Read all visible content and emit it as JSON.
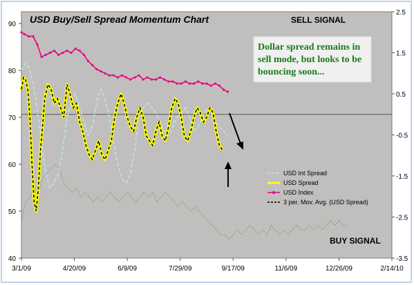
{
  "chart_data": {
    "type": "line",
    "title": "USD Buy/Sell Spread Momentum Chart",
    "sell_signal_label": "SELL SIGNAL",
    "buy_signal_label": "BUY SIGNAL",
    "annotation": [
      "Dollar spread remains in",
      "sell mode, but looks to be",
      "bouncing soon..."
    ],
    "x_axis": {
      "min": "2009-03-01",
      "max": "2010-02-14",
      "ticks": [
        "2009-03-01",
        "2009-04-20",
        "2009-06-09",
        "2009-07-29",
        "2009-09-17",
        "2009-11-06",
        "2009-12-26",
        "2010-02-14"
      ],
      "tick_labels": [
        "3/1/09",
        "4/20/09",
        "6/9/09",
        "7/29/09",
        "9/17/09",
        "11/6/09",
        "12/26/09",
        "2/14/10"
      ]
    },
    "y_left": {
      "min": 40,
      "max": 92.5,
      "ticks": [
        40,
        50,
        60,
        70,
        80,
        90
      ]
    },
    "y_right": {
      "min": -3.5,
      "max": 2.5,
      "ticks": [
        2.5,
        1.5,
        0.5,
        -0.5,
        -1.5,
        -2.5,
        -3.5
      ],
      "tick_labels": [
        "2.5",
        "1.5",
        "0.5",
        "-0.5",
        "-1.5",
        "-2.5",
        "-3.5"
      ]
    },
    "signal_line_right_value": 0,
    "grid": false,
    "legend_position": "bottom-right",
    "series": [
      {
        "name": "USD Int Spread",
        "axis": "left",
        "color": "#bfe6ea",
        "style": "dashed",
        "x": [
          "2009-03-01",
          "2009-03-05",
          "2009-03-09",
          "2009-03-13",
          "2009-03-17",
          "2009-03-21",
          "2009-03-24",
          "2009-03-28",
          "2009-04-01",
          "2009-04-05",
          "2009-04-09",
          "2009-04-13",
          "2009-04-17",
          "2009-04-21",
          "2009-04-25",
          "2009-04-29",
          "2009-05-03",
          "2009-05-07",
          "2009-05-11",
          "2009-05-15",
          "2009-05-19",
          "2009-05-23",
          "2009-05-27",
          "2009-05-31",
          "2009-06-04",
          "2009-06-08",
          "2009-06-12",
          "2009-06-16",
          "2009-06-20",
          "2009-06-24",
          "2009-06-28",
          "2009-07-02",
          "2009-07-06",
          "2009-07-10",
          "2009-07-14",
          "2009-07-18",
          "2009-07-22",
          "2009-07-26",
          "2009-07-30",
          "2009-08-03",
          "2009-08-07",
          "2009-08-11",
          "2009-08-15",
          "2009-08-19",
          "2009-08-23",
          "2009-08-27",
          "2009-08-31",
          "2009-09-04",
          "2009-09-08",
          "2009-09-12"
        ],
        "values": [
          80,
          81.5,
          80,
          76,
          70,
          63,
          58,
          55,
          56,
          58,
          63,
          70,
          73,
          75,
          72,
          69,
          66,
          68,
          73,
          76,
          74,
          70,
          65,
          60,
          57,
          56,
          58,
          63,
          70,
          72,
          73,
          72,
          71,
          69,
          67,
          66,
          68,
          70,
          71,
          72,
          70,
          67,
          68,
          70,
          72,
          71,
          69,
          68,
          67,
          66
        ]
      },
      {
        "name": "USD Spread",
        "axis": "left",
        "color": "#ffff00",
        "style": "solid",
        "x": [
          "2009-03-01",
          "2009-03-03",
          "2009-03-05",
          "2009-03-07",
          "2009-03-09",
          "2009-03-11",
          "2009-03-13",
          "2009-03-15",
          "2009-03-17",
          "2009-03-19",
          "2009-03-21",
          "2009-03-23",
          "2009-03-26",
          "2009-03-29",
          "2009-04-01",
          "2009-04-04",
          "2009-04-07",
          "2009-04-10",
          "2009-04-13",
          "2009-04-16",
          "2009-04-19",
          "2009-04-22",
          "2009-04-25",
          "2009-04-28",
          "2009-05-01",
          "2009-05-04",
          "2009-05-07",
          "2009-05-10",
          "2009-05-13",
          "2009-05-16",
          "2009-05-19",
          "2009-05-22",
          "2009-05-25",
          "2009-05-28",
          "2009-05-31",
          "2009-06-03",
          "2009-06-06",
          "2009-06-09",
          "2009-06-12",
          "2009-06-15",
          "2009-06-18",
          "2009-06-21",
          "2009-06-24",
          "2009-06-27",
          "2009-06-30",
          "2009-07-03",
          "2009-07-06",
          "2009-07-09",
          "2009-07-12",
          "2009-07-15",
          "2009-07-18",
          "2009-07-21",
          "2009-07-24",
          "2009-07-27",
          "2009-07-30",
          "2009-08-02",
          "2009-08-05",
          "2009-08-08",
          "2009-08-11",
          "2009-08-14",
          "2009-08-17",
          "2009-08-20",
          "2009-08-23",
          "2009-08-26",
          "2009-08-29",
          "2009-09-01",
          "2009-09-04",
          "2009-09-07"
        ],
        "values": [
          76,
          78.5,
          78,
          76,
          70,
          60,
          52,
          50,
          55,
          63,
          68,
          74,
          77,
          76,
          73,
          74,
          72,
          70,
          77,
          75,
          72,
          73,
          69,
          67,
          64,
          62,
          61,
          63,
          65,
          62,
          61,
          63,
          65,
          70,
          73,
          75,
          73,
          70,
          68,
          67,
          70,
          72,
          70,
          66,
          65,
          64,
          67,
          69,
          66,
          65,
          68,
          72,
          74,
          73,
          70,
          66,
          65,
          67,
          70,
          72,
          71,
          69,
          70,
          72,
          71,
          67,
          64,
          63
        ]
      },
      {
        "name": "USD Index",
        "axis": "right",
        "color": "#e6007e",
        "style": "solid-markers",
        "x": [
          "2009-03-01",
          "2009-03-04",
          "2009-03-08",
          "2009-03-12",
          "2009-03-16",
          "2009-03-20",
          "2009-03-24",
          "2009-03-28",
          "2009-04-01",
          "2009-04-05",
          "2009-04-09",
          "2009-04-13",
          "2009-04-17",
          "2009-04-21",
          "2009-04-25",
          "2009-04-29",
          "2009-05-03",
          "2009-05-07",
          "2009-05-11",
          "2009-05-15",
          "2009-05-19",
          "2009-05-23",
          "2009-05-27",
          "2009-05-31",
          "2009-06-04",
          "2009-06-08",
          "2009-06-12",
          "2009-06-16",
          "2009-06-20",
          "2009-06-24",
          "2009-06-28",
          "2009-07-02",
          "2009-07-06",
          "2009-07-10",
          "2009-07-14",
          "2009-07-18",
          "2009-07-22",
          "2009-07-26",
          "2009-07-30",
          "2009-08-03",
          "2009-08-07",
          "2009-08-11",
          "2009-08-15",
          "2009-08-19",
          "2009-08-23",
          "2009-08-27",
          "2009-08-31",
          "2009-09-04",
          "2009-09-08",
          "2009-09-12"
        ],
        "values": [
          2.0,
          1.95,
          1.9,
          1.9,
          1.7,
          1.4,
          1.45,
          1.5,
          1.55,
          1.45,
          1.5,
          1.55,
          1.5,
          1.6,
          1.55,
          1.45,
          1.3,
          1.2,
          1.1,
          1.05,
          1.0,
          0.95,
          0.95,
          0.9,
          0.95,
          0.9,
          0.85,
          0.9,
          0.95,
          0.85,
          0.9,
          0.85,
          0.85,
          0.9,
          0.85,
          0.8,
          0.8,
          0.75,
          0.75,
          0.8,
          0.75,
          0.75,
          0.8,
          0.75,
          0.75,
          0.7,
          0.75,
          0.7,
          0.6,
          0.55
        ]
      },
      {
        "name": "3 per. Mov. Avg. (USD Spread)",
        "axis": "left",
        "color": "#000000",
        "style": "dashed",
        "x": [
          "2009-03-01",
          "2009-03-03",
          "2009-03-05",
          "2009-03-07",
          "2009-03-09",
          "2009-03-11",
          "2009-03-13",
          "2009-03-15",
          "2009-03-17",
          "2009-03-19",
          "2009-03-21",
          "2009-03-23",
          "2009-03-26",
          "2009-03-29",
          "2009-04-01",
          "2009-04-04",
          "2009-04-07",
          "2009-04-10",
          "2009-04-13",
          "2009-04-16",
          "2009-04-19",
          "2009-04-22",
          "2009-04-25",
          "2009-04-28",
          "2009-05-01",
          "2009-05-04",
          "2009-05-07",
          "2009-05-10",
          "2009-05-13",
          "2009-05-16",
          "2009-05-19",
          "2009-05-22",
          "2009-05-25",
          "2009-05-28",
          "2009-05-31",
          "2009-06-03",
          "2009-06-06",
          "2009-06-09",
          "2009-06-12",
          "2009-06-15",
          "2009-06-18",
          "2009-06-21",
          "2009-06-24",
          "2009-06-27",
          "2009-06-30",
          "2009-07-03",
          "2009-07-06",
          "2009-07-09",
          "2009-07-12",
          "2009-07-15",
          "2009-07-18",
          "2009-07-21",
          "2009-07-24",
          "2009-07-27",
          "2009-07-30",
          "2009-08-02",
          "2009-08-05",
          "2009-08-08",
          "2009-08-11",
          "2009-08-14",
          "2009-08-17",
          "2009-08-20",
          "2009-08-23",
          "2009-08-26",
          "2009-08-29",
          "2009-09-01",
          "2009-09-04",
          "2009-09-07"
        ],
        "values": [
          76,
          78.5,
          78,
          76,
          70,
          60,
          52,
          50,
          55,
          63,
          68,
          74,
          77,
          76,
          73,
          74,
          72,
          70,
          77,
          75,
          72,
          73,
          69,
          67,
          64,
          62,
          61,
          63,
          65,
          62,
          61,
          63,
          65,
          70,
          73,
          75,
          73,
          70,
          68,
          67,
          70,
          72,
          70,
          66,
          65,
          64,
          67,
          69,
          66,
          65,
          68,
          72,
          74,
          73,
          70,
          66,
          65,
          67,
          70,
          72,
          71,
          69,
          70,
          72,
          71,
          67,
          64,
          63
        ]
      },
      {
        "name": "",
        "axis": "left",
        "color": "#3a8f5a",
        "style": "dotted",
        "x": [
          "2009-03-01",
          "2009-03-05",
          "2009-03-09",
          "2009-03-13",
          "2009-03-17",
          "2009-03-21",
          "2009-03-25",
          "2009-03-29",
          "2009-04-02",
          "2009-04-06",
          "2009-04-10",
          "2009-04-14",
          "2009-04-18",
          "2009-04-22",
          "2009-04-26",
          "2009-04-30",
          "2009-05-04",
          "2009-05-08",
          "2009-05-12",
          "2009-05-16",
          "2009-05-20",
          "2009-05-24",
          "2009-05-28",
          "2009-06-01",
          "2009-06-05",
          "2009-06-09",
          "2009-06-13",
          "2009-06-17",
          "2009-06-21",
          "2009-06-25",
          "2009-06-29",
          "2009-07-03",
          "2009-07-07",
          "2009-07-11",
          "2009-07-15",
          "2009-07-19",
          "2009-07-23",
          "2009-07-27",
          "2009-07-31",
          "2009-08-04",
          "2009-08-08",
          "2009-08-12",
          "2009-08-16",
          "2009-08-20",
          "2009-08-24",
          "2009-08-28",
          "2009-09-01",
          "2009-09-05",
          "2009-09-09",
          "2009-09-13",
          "2009-09-17",
          "2009-09-21",
          "2009-09-25",
          "2009-09-29",
          "2009-10-03",
          "2009-10-07",
          "2009-10-11",
          "2009-10-15",
          "2009-10-19",
          "2009-10-23",
          "2009-10-27",
          "2009-10-31",
          "2009-11-04",
          "2009-11-08",
          "2009-11-12",
          "2009-11-16",
          "2009-11-20",
          "2009-11-24",
          "2009-11-28",
          "2009-12-02",
          "2009-12-06",
          "2009-12-10",
          "2009-12-14",
          "2009-12-18",
          "2009-12-22",
          "2009-12-26",
          "2009-12-30",
          "2010-01-03"
        ],
        "values": [
          48,
          52,
          53,
          55,
          54,
          57,
          58,
          59,
          60,
          59,
          56,
          55,
          54,
          55,
          53,
          54,
          53,
          52,
          53,
          52,
          53,
          54,
          53,
          52,
          53,
          54,
          53,
          52,
          53,
          54,
          53,
          54,
          52,
          53,
          54,
          53,
          52,
          51,
          52,
          51,
          50,
          51,
          50,
          49,
          48,
          47,
          46,
          45,
          45,
          44,
          45,
          46,
          45,
          46,
          47,
          46,
          45,
          46,
          45,
          47,
          46,
          45,
          46,
          45,
          46,
          47,
          46,
          46,
          47,
          46,
          47,
          46,
          47,
          48,
          47,
          48,
          47,
          47
        ]
      }
    ]
  }
}
